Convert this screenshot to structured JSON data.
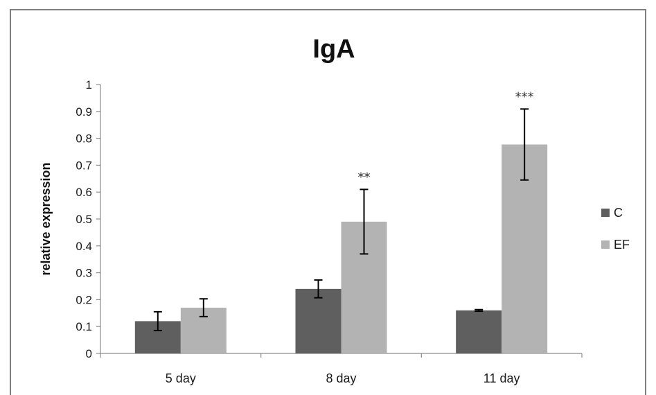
{
  "chart_data": {
    "type": "bar",
    "title": "IgA",
    "xlabel": "",
    "ylabel": "relative expression",
    "ylim": [
      0,
      1
    ],
    "yticks": [
      "0",
      "0.1",
      "0.2",
      "0.3",
      "0.4",
      "0.5",
      "0.6",
      "0.7",
      "0.8",
      "0.9",
      "1"
    ],
    "categories": [
      "5 day",
      "8 day",
      "11 day"
    ],
    "series": [
      {
        "name": "C",
        "color": "#5f5f5f",
        "values": [
          0.12,
          0.24,
          0.16
        ],
        "errors": [
          0.035,
          0.033,
          0.003
        ]
      },
      {
        "name": "EF",
        "color": "#b3b3b3",
        "values": [
          0.17,
          0.49,
          0.777
        ],
        "errors": [
          0.033,
          0.12,
          0.132
        ]
      }
    ],
    "annotations": [
      {
        "category": "8 day",
        "series": "EF",
        "text": "**"
      },
      {
        "category": "11 day",
        "series": "EF",
        "text": "***"
      }
    ],
    "grid": false,
    "legend": "right"
  }
}
